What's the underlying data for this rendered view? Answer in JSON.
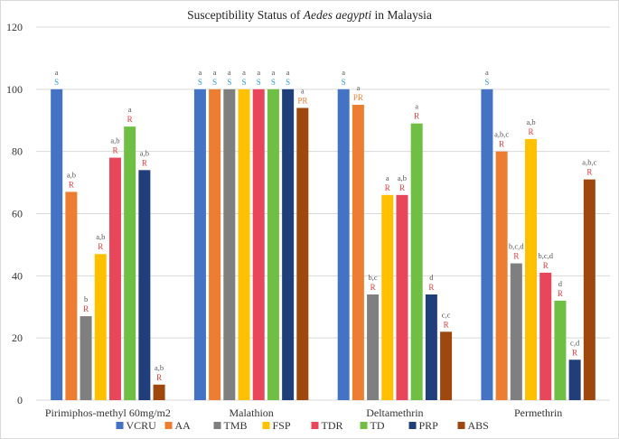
{
  "chart_data": {
    "type": "bar",
    "title_prefix": "Susceptibility Status of ",
    "title_species": "Aedes aegypti",
    "title_suffix": " in Malaysia",
    "categories": [
      "Pirimiphos-methyl 60mg/m2",
      "Malathion",
      "Deltamethrin",
      "Permethrin"
    ],
    "ylim": [
      0,
      120
    ],
    "yticks": [
      0,
      20,
      40,
      60,
      80,
      100,
      120
    ],
    "grid": true,
    "legend_position": "bottom",
    "series": [
      {
        "name": "VCRU",
        "color": "#4472c4",
        "values": [
          100,
          100,
          100,
          100
        ],
        "letters": [
          "a",
          "a",
          "a",
          "a"
        ],
        "status": [
          "S",
          "S",
          "S",
          "S"
        ]
      },
      {
        "name": "AA",
        "color": "#ed7d31",
        "values": [
          67,
          100,
          95,
          80
        ],
        "letters": [
          "a,b",
          "a",
          "a",
          "a,b,c"
        ],
        "status": [
          "R",
          "S",
          "PR",
          "R"
        ]
      },
      {
        "name": "TMB",
        "color": "#7f7f7f",
        "values": [
          27,
          100,
          34,
          44
        ],
        "letters": [
          "b",
          "a",
          "b,c",
          "b,c,d"
        ],
        "status": [
          "R",
          "S",
          "R",
          "R"
        ]
      },
      {
        "name": "FSP",
        "color": "#ffc000",
        "values": [
          47,
          100,
          66,
          84
        ],
        "letters": [
          "a,b",
          "a",
          "a",
          "a,b"
        ],
        "status": [
          "R",
          "S",
          "R",
          "R"
        ]
      },
      {
        "name": "TDR",
        "color": "#e8475b",
        "values": [
          78,
          100,
          66,
          41
        ],
        "letters": [
          "a,b",
          "a",
          "a,b",
          "b,c,d"
        ],
        "status": [
          "R",
          "S",
          "R",
          "R"
        ]
      },
      {
        "name": "TD",
        "color": "#70bf45",
        "values": [
          88,
          100,
          89,
          32
        ],
        "letters": [
          "a",
          "a",
          "a",
          "d"
        ],
        "status": [
          "R",
          "S",
          "R",
          "R"
        ]
      },
      {
        "name": "PRP",
        "color": "#203f7a",
        "values": [
          74,
          100,
          34,
          13
        ],
        "letters": [
          "a,b",
          "a",
          "d",
          "c,d"
        ],
        "status": [
          "R",
          "S",
          "R",
          "R"
        ]
      },
      {
        "name": "ABS",
        "color": "#9e480e",
        "values": [
          5,
          94,
          22,
          71
        ],
        "letters": [
          "a,b",
          "a",
          "c,c",
          "a,b,c"
        ],
        "status": [
          "R",
          "PR",
          "R",
          "R"
        ]
      }
    ],
    "status_colors": {
      "S": "#2e9bd6",
      "R": "#e03c3c",
      "PR": "#ed7d31"
    }
  }
}
